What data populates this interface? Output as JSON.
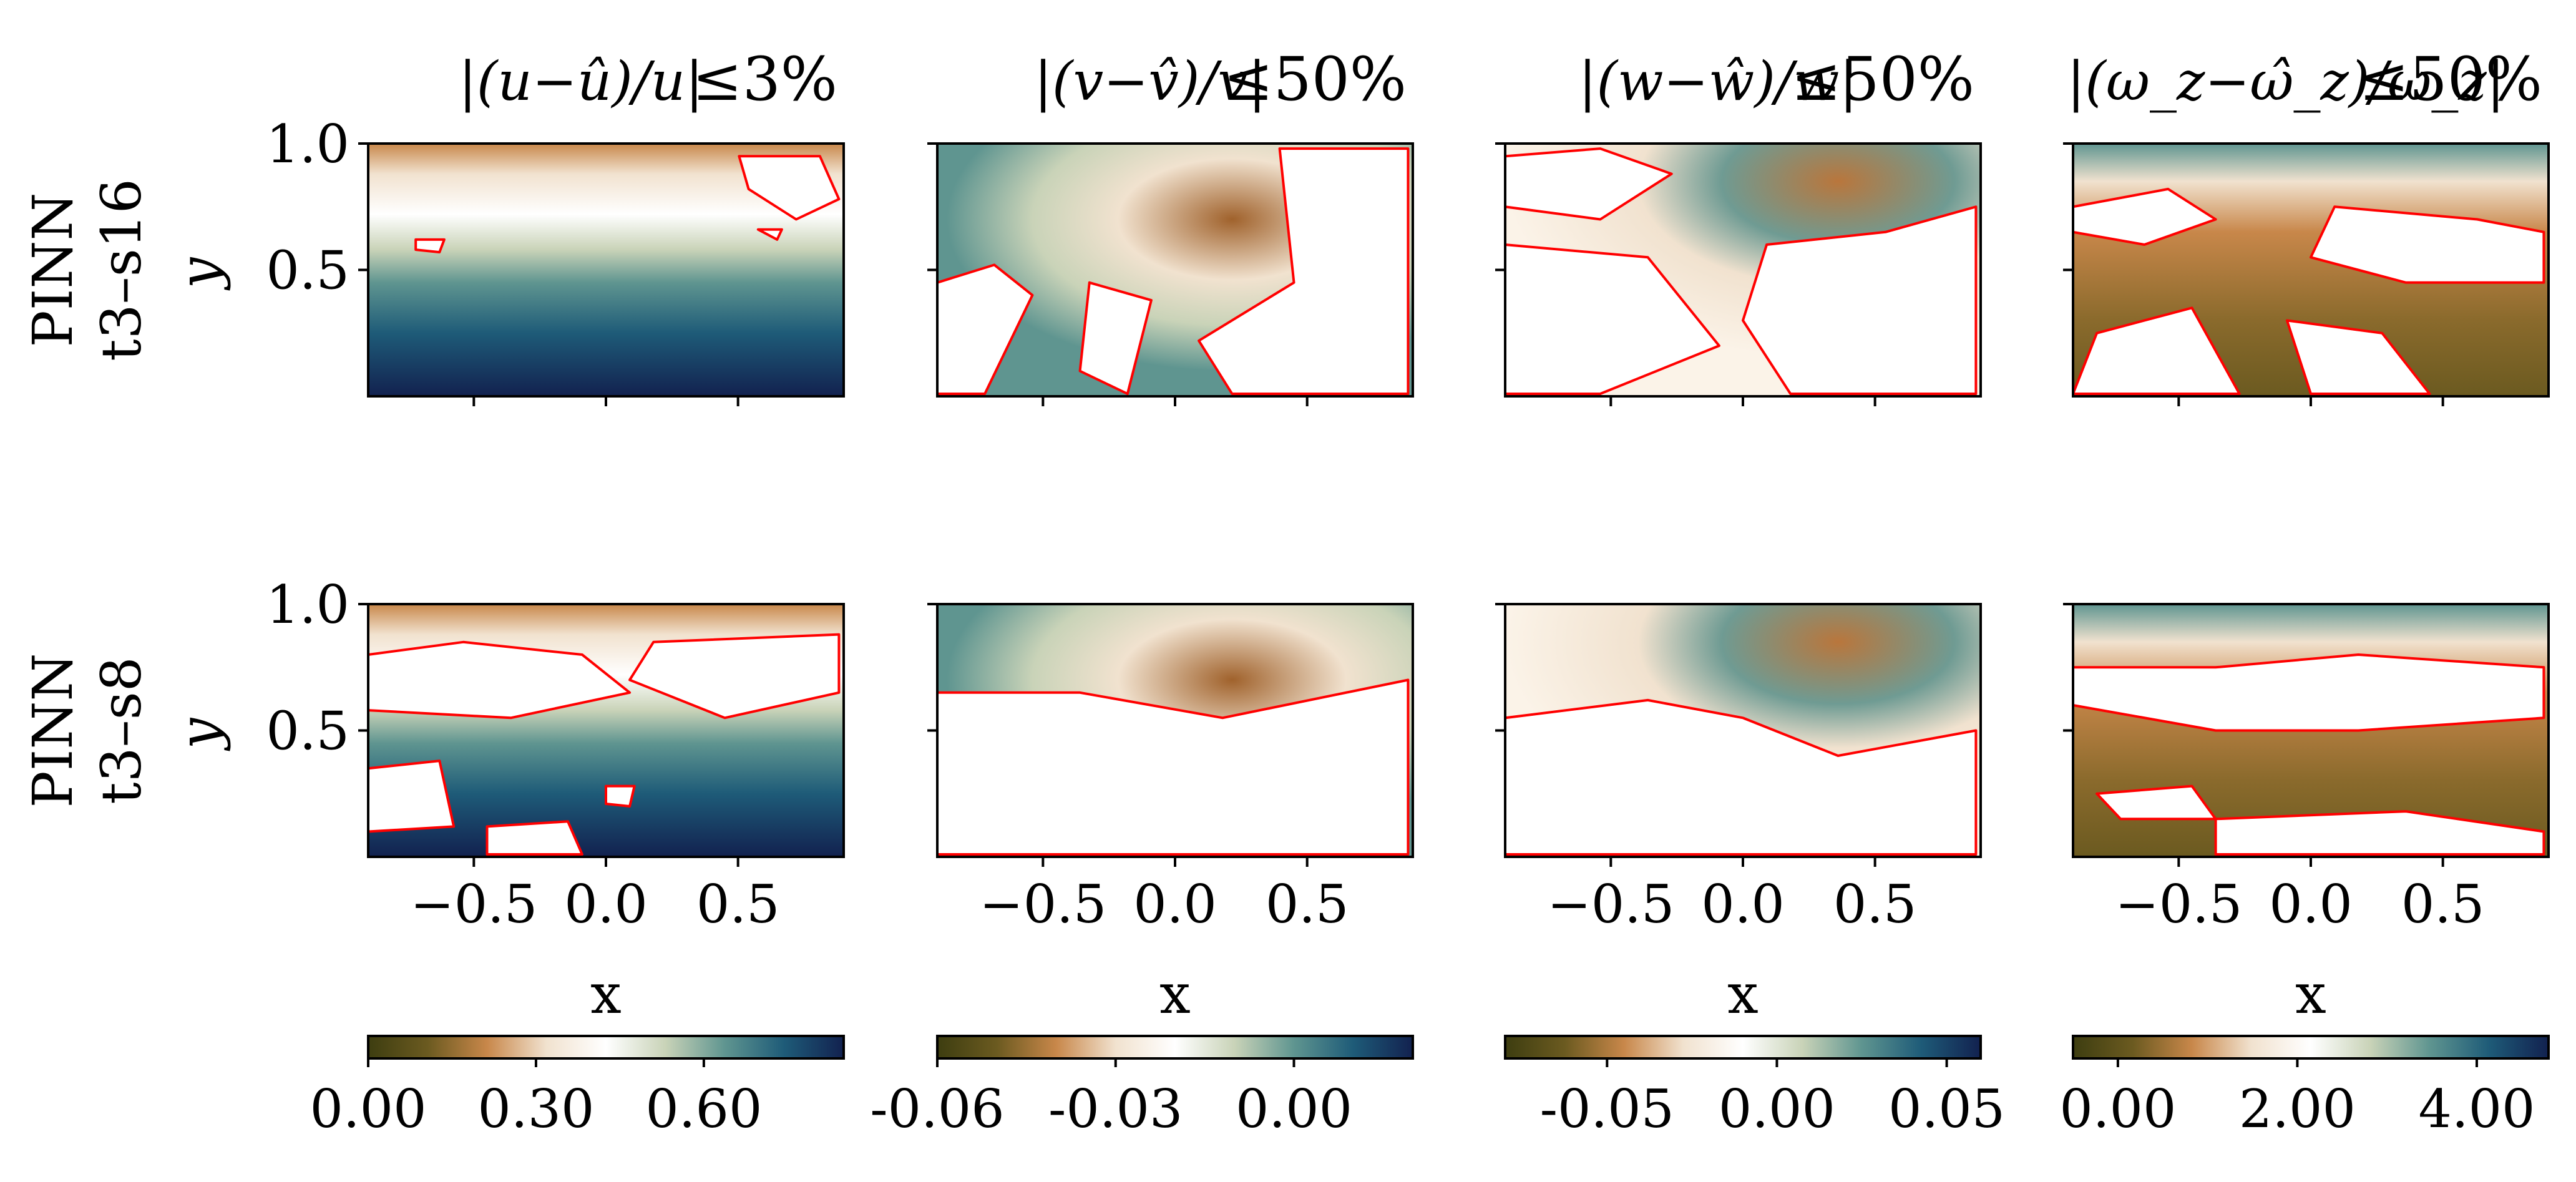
{
  "figure": {
    "column_titles": [
      {
        "lhs": "|(u−û)/u|",
        "rel": "≤3%"
      },
      {
        "lhs": "|(v−v̂)/v|",
        "rel": "≤50%"
      },
      {
        "lhs": "|(w−ŵ)/w|",
        "rel": "≤50%"
      },
      {
        "lhs": "|(ω_z−ω̂_z)/ω_z|",
        "rel": "≤50%"
      }
    ],
    "row_labels": [
      {
        "line1": "PINN",
        "line2": "t3–s16"
      },
      {
        "line1": "PINN",
        "line2": "t3–s8"
      }
    ],
    "ylabel": "y",
    "xlabel": "x",
    "contour_color": "#ff0000",
    "colormap": [
      "#3d3d10",
      "#6b5a20",
      "#c8874a",
      "#f1e2cf",
      "#ffffff",
      "#c9d3b8",
      "#5f9590",
      "#1e5b78",
      "#12214f"
    ]
  },
  "chart_data": [
    {
      "type": "heatmap",
      "row": "PINN t3–s16",
      "col": 0,
      "variable": "u",
      "threshold": "3%",
      "xlim": [
        -0.9,
        0.9
      ],
      "ylim": [
        0.0,
        1.0
      ],
      "xticks": [
        "−0.5",
        "0.0",
        "0.5"
      ],
      "yticks": [
        "0.5",
        "1.0"
      ],
      "colorbar": {
        "ticks": [
          "0.00",
          "0.30",
          "0.60"
        ],
        "range": [
          0.0,
          0.85
        ]
      }
    },
    {
      "type": "heatmap",
      "row": "PINN t3–s16",
      "col": 1,
      "variable": "v",
      "threshold": "50%",
      "xlim": [
        -0.9,
        0.9
      ],
      "ylim": [
        0.0,
        1.0
      ],
      "xticks": [
        "−0.5",
        "0.0",
        "0.5"
      ],
      "yticks": [
        "0.5",
        "1.0"
      ],
      "colorbar": {
        "ticks": [
          "-0.06",
          "-0.03",
          "0.00"
        ],
        "range": [
          -0.06,
          0.02
        ]
      }
    },
    {
      "type": "heatmap",
      "row": "PINN t3–s16",
      "col": 2,
      "variable": "w",
      "threshold": "50%",
      "xlim": [
        -0.9,
        0.9
      ],
      "ylim": [
        0.0,
        1.0
      ],
      "xticks": [
        "−0.5",
        "0.0",
        "0.5"
      ],
      "yticks": [
        "0.5",
        "1.0"
      ],
      "colorbar": {
        "ticks": [
          "-0.05",
          "0.00",
          "0.05"
        ],
        "range": [
          -0.08,
          0.06
        ]
      }
    },
    {
      "type": "heatmap",
      "row": "PINN t3–s16",
      "col": 3,
      "variable": "ω_z",
      "threshold": "50%",
      "xlim": [
        -0.9,
        0.9
      ],
      "ylim": [
        0.0,
        1.0
      ],
      "xticks": [
        "−0.5",
        "0.0",
        "0.5"
      ],
      "yticks": [
        "0.5",
        "1.0"
      ],
      "colorbar": {
        "ticks": [
          "0.00",
          "2.00",
          "4.00"
        ],
        "range": [
          -0.5,
          4.8
        ]
      }
    },
    {
      "type": "heatmap",
      "row": "PINN t3–s8",
      "col": 0,
      "variable": "u",
      "threshold": "3%",
      "xlim": [
        -0.9,
        0.9
      ],
      "ylim": [
        0.0,
        1.0
      ],
      "xticks": [
        "−0.5",
        "0.0",
        "0.5"
      ],
      "yticks": [
        "0.5",
        "1.0"
      ]
    },
    {
      "type": "heatmap",
      "row": "PINN t3–s8",
      "col": 1,
      "variable": "v",
      "threshold": "50%",
      "xlim": [
        -0.9,
        0.9
      ],
      "ylim": [
        0.0,
        1.0
      ],
      "xticks": [
        "−0.5",
        "0.0",
        "0.5"
      ],
      "yticks": [
        "0.5",
        "1.0"
      ]
    },
    {
      "type": "heatmap",
      "row": "PINN t3–s8",
      "col": 2,
      "variable": "w",
      "threshold": "50%",
      "xlim": [
        -0.9,
        0.9
      ],
      "ylim": [
        0.0,
        1.0
      ],
      "xticks": [
        "−0.5",
        "0.0",
        "0.5"
      ],
      "yticks": [
        "0.5",
        "1.0"
      ]
    },
    {
      "type": "heatmap",
      "row": "PINN t3–s8",
      "col": 3,
      "variable": "ω_z",
      "threshold": "50%",
      "xlim": [
        -0.9,
        0.9
      ],
      "ylim": [
        0.0,
        1.0
      ],
      "xticks": [
        "−0.5",
        "0.0",
        "0.5"
      ],
      "yticks": [
        "0.5",
        "1.0"
      ]
    }
  ]
}
